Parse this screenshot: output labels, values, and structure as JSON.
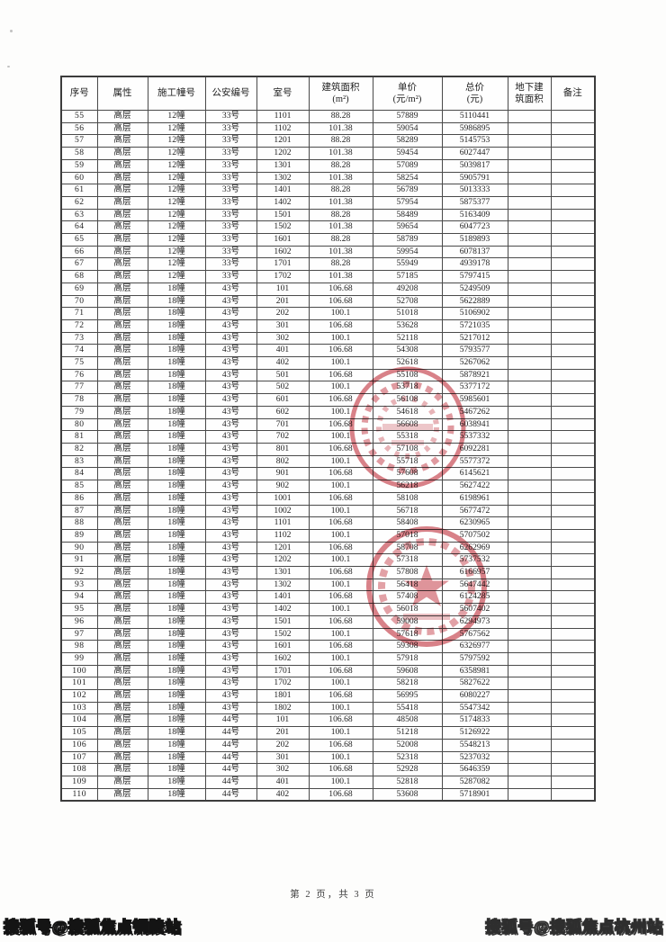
{
  "page": {
    "footer_text": "第 2 页，共 3 页",
    "watermark_left": "搜狐号@搜狐焦点铜陵站",
    "watermark_right": "搜狐号@搜狐焦点杭州站"
  },
  "colors": {
    "seal_red": "#c23540",
    "grid_line": "#4a4a4a",
    "text": "#1f1f1f"
  },
  "table": {
    "headers": [
      "序号",
      "属性",
      "施工幢号",
      "公安编号",
      "室号",
      "建筑面积\n(m²)",
      "单价\n(元/m²)",
      "总价\n(元)",
      "地下建\n筑面积",
      "备注"
    ],
    "rows": [
      [
        "55",
        "高层",
        "12幢",
        "33号",
        "1101",
        "88.28",
        "57889",
        "5110441",
        "",
        ""
      ],
      [
        "56",
        "高层",
        "12幢",
        "33号",
        "1102",
        "101.38",
        "59054",
        "5986895",
        "",
        ""
      ],
      [
        "57",
        "高层",
        "12幢",
        "33号",
        "1201",
        "88.28",
        "58289",
        "5145753",
        "",
        ""
      ],
      [
        "58",
        "高层",
        "12幢",
        "33号",
        "1202",
        "101.38",
        "59454",
        "6027447",
        "",
        ""
      ],
      [
        "59",
        "高层",
        "12幢",
        "33号",
        "1301",
        "88.28",
        "57089",
        "5039817",
        "",
        ""
      ],
      [
        "60",
        "高层",
        "12幢",
        "33号",
        "1302",
        "101.38",
        "58254",
        "5905791",
        "",
        ""
      ],
      [
        "61",
        "高层",
        "12幢",
        "33号",
        "1401",
        "88.28",
        "56789",
        "5013333",
        "",
        ""
      ],
      [
        "62",
        "高层",
        "12幢",
        "33号",
        "1402",
        "101.38",
        "57954",
        "5875377",
        "",
        ""
      ],
      [
        "63",
        "高层",
        "12幢",
        "33号",
        "1501",
        "88.28",
        "58489",
        "5163409",
        "",
        ""
      ],
      [
        "64",
        "高层",
        "12幢",
        "33号",
        "1502",
        "101.38",
        "59654",
        "6047723",
        "",
        ""
      ],
      [
        "65",
        "高层",
        "12幢",
        "33号",
        "1601",
        "88.28",
        "58789",
        "5189893",
        "",
        ""
      ],
      [
        "66",
        "高层",
        "12幢",
        "33号",
        "1602",
        "101.38",
        "59954",
        "6078137",
        "",
        ""
      ],
      [
        "67",
        "高层",
        "12幢",
        "33号",
        "1701",
        "88.28",
        "55949",
        "4939178",
        "",
        ""
      ],
      [
        "68",
        "高层",
        "12幢",
        "33号",
        "1702",
        "101.38",
        "57185",
        "5797415",
        "",
        ""
      ],
      [
        "69",
        "高层",
        "18幢",
        "43号",
        "101",
        "106.68",
        "49208",
        "5249509",
        "",
        ""
      ],
      [
        "70",
        "高层",
        "18幢",
        "43号",
        "201",
        "106.68",
        "52708",
        "5622889",
        "",
        ""
      ],
      [
        "71",
        "高层",
        "18幢",
        "43号",
        "202",
        "100.1",
        "51018",
        "5106902",
        "",
        ""
      ],
      [
        "72",
        "高层",
        "18幢",
        "43号",
        "301",
        "106.68",
        "53628",
        "5721035",
        "",
        ""
      ],
      [
        "73",
        "高层",
        "18幢",
        "43号",
        "302",
        "100.1",
        "52118",
        "5217012",
        "",
        ""
      ],
      [
        "74",
        "高层",
        "18幢",
        "43号",
        "401",
        "106.68",
        "54308",
        "5793577",
        "",
        ""
      ],
      [
        "75",
        "高层",
        "18幢",
        "43号",
        "402",
        "100.1",
        "52618",
        "5267062",
        "",
        ""
      ],
      [
        "76",
        "高层",
        "18幢",
        "43号",
        "501",
        "106.68",
        "55108",
        "5878921",
        "",
        ""
      ],
      [
        "77",
        "高层",
        "18幢",
        "43号",
        "502",
        "100.1",
        "53718",
        "5377172",
        "",
        ""
      ],
      [
        "78",
        "高层",
        "18幢",
        "43号",
        "601",
        "106.68",
        "56108",
        "5985601",
        "",
        ""
      ],
      [
        "79",
        "高层",
        "18幢",
        "43号",
        "602",
        "100.1",
        "54618",
        "5467262",
        "",
        ""
      ],
      [
        "80",
        "高层",
        "18幢",
        "43号",
        "701",
        "106.68",
        "56608",
        "6038941",
        "",
        ""
      ],
      [
        "81",
        "高层",
        "18幢",
        "43号",
        "702",
        "100.1",
        "55318",
        "5537332",
        "",
        ""
      ],
      [
        "82",
        "高层",
        "18幢",
        "43号",
        "801",
        "106.68",
        "57108",
        "6092281",
        "",
        ""
      ],
      [
        "83",
        "高层",
        "18幢",
        "43号",
        "802",
        "100.1",
        "55718",
        "5577372",
        "",
        ""
      ],
      [
        "84",
        "高层",
        "18幢",
        "43号",
        "901",
        "106.68",
        "57608",
        "6145621",
        "",
        ""
      ],
      [
        "85",
        "高层",
        "18幢",
        "43号",
        "902",
        "100.1",
        "56218",
        "5627422",
        "",
        ""
      ],
      [
        "86",
        "高层",
        "18幢",
        "43号",
        "1001",
        "106.68",
        "58108",
        "6198961",
        "",
        ""
      ],
      [
        "87",
        "高层",
        "18幢",
        "43号",
        "1002",
        "100.1",
        "56718",
        "5677472",
        "",
        ""
      ],
      [
        "88",
        "高层",
        "18幢",
        "43号",
        "1101",
        "106.68",
        "58408",
        "6230965",
        "",
        ""
      ],
      [
        "89",
        "高层",
        "18幢",
        "43号",
        "1102",
        "100.1",
        "57018",
        "5707502",
        "",
        ""
      ],
      [
        "90",
        "高层",
        "18幢",
        "43号",
        "1201",
        "106.68",
        "58708",
        "6262969",
        "",
        ""
      ],
      [
        "91",
        "高层",
        "18幢",
        "43号",
        "1202",
        "100.1",
        "57318",
        "5737532",
        "",
        ""
      ],
      [
        "92",
        "高层",
        "18幢",
        "43号",
        "1301",
        "106.68",
        "57808",
        "6166957",
        "",
        ""
      ],
      [
        "93",
        "高层",
        "18幢",
        "43号",
        "1302",
        "100.1",
        "56418",
        "5647442",
        "",
        ""
      ],
      [
        "94",
        "高层",
        "18幢",
        "43号",
        "1401",
        "106.68",
        "57408",
        "6124285",
        "",
        ""
      ],
      [
        "95",
        "高层",
        "18幢",
        "43号",
        "1402",
        "100.1",
        "56018",
        "5607402",
        "",
        ""
      ],
      [
        "96",
        "高层",
        "18幢",
        "43号",
        "1501",
        "106.68",
        "59008",
        "6294973",
        "",
        ""
      ],
      [
        "97",
        "高层",
        "18幢",
        "43号",
        "1502",
        "100.1",
        "57618",
        "5767562",
        "",
        ""
      ],
      [
        "98",
        "高层",
        "18幢",
        "43号",
        "1601",
        "106.68",
        "59308",
        "6326977",
        "",
        ""
      ],
      [
        "99",
        "高层",
        "18幢",
        "43号",
        "1602",
        "100.1",
        "57918",
        "5797592",
        "",
        ""
      ],
      [
        "100",
        "高层",
        "18幢",
        "43号",
        "1701",
        "106.68",
        "59608",
        "6358981",
        "",
        ""
      ],
      [
        "101",
        "高层",
        "18幢",
        "43号",
        "1702",
        "100.1",
        "58218",
        "5827622",
        "",
        ""
      ],
      [
        "102",
        "高层",
        "18幢",
        "43号",
        "1801",
        "106.68",
        "56995",
        "6080227",
        "",
        ""
      ],
      [
        "103",
        "高层",
        "18幢",
        "43号",
        "1802",
        "100.1",
        "55418",
        "5547342",
        "",
        ""
      ],
      [
        "104",
        "高层",
        "18幢",
        "44号",
        "101",
        "106.68",
        "48508",
        "5174833",
        "",
        ""
      ],
      [
        "105",
        "高层",
        "18幢",
        "44号",
        "201",
        "100.1",
        "51218",
        "5126922",
        "",
        ""
      ],
      [
        "106",
        "高层",
        "18幢",
        "44号",
        "202",
        "106.68",
        "52008",
        "5548213",
        "",
        ""
      ],
      [
        "107",
        "高层",
        "18幢",
        "44号",
        "301",
        "100.1",
        "52318",
        "5237032",
        "",
        ""
      ],
      [
        "108",
        "高层",
        "18幢",
        "44号",
        "302",
        "106.68",
        "52928",
        "5646359",
        "",
        ""
      ],
      [
        "109",
        "高层",
        "18幢",
        "44号",
        "401",
        "100.1",
        "52818",
        "5287082",
        "",
        ""
      ],
      [
        "110",
        "高层",
        "18幢",
        "44号",
        "402",
        "106.68",
        "53608",
        "5718901",
        "",
        ""
      ]
    ]
  }
}
